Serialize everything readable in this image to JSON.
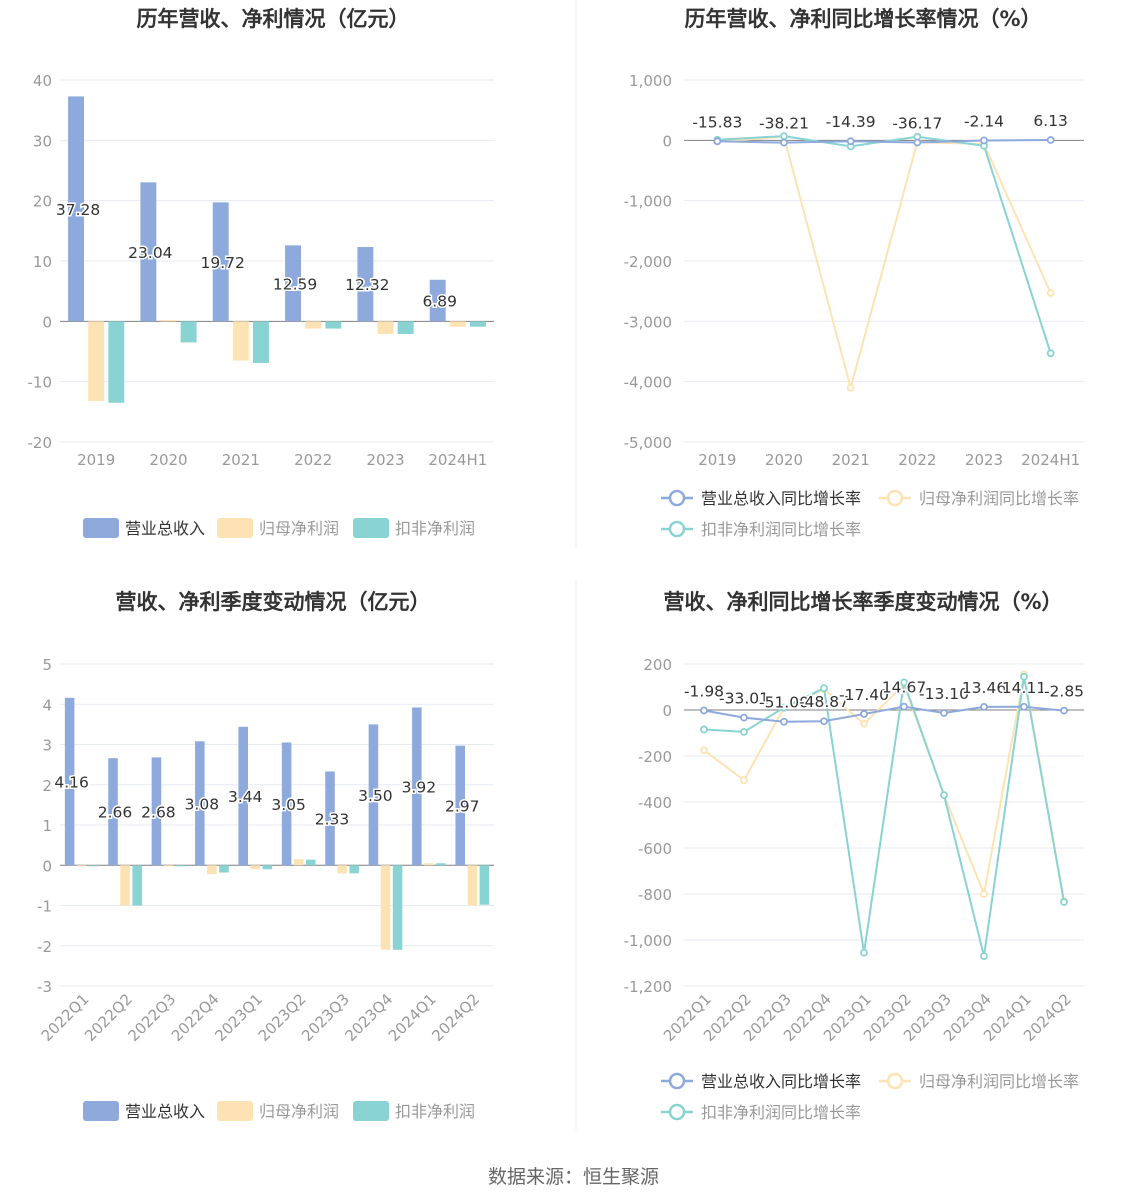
{
  "colors": {
    "revenue": "#8eaadc",
    "netprofit": "#fde3b3",
    "deducted": "#8ad3d3",
    "grid": "#e6eaf2",
    "axis": "#7f7f7f",
    "text": "#333333",
    "tick": "#999999"
  },
  "footer": {
    "source": "数据来源：恒生聚源"
  },
  "legend_labels": {
    "bars": [
      "营业总收入",
      "归母净利润",
      "扣非净利润"
    ],
    "lines": [
      "营业总收入同比增长率",
      "归母净利润同比增长率",
      "扣非净利润同比增长率"
    ]
  },
  "chart_data": [
    {
      "type": "bar",
      "title": "历年营收、净利情况（亿元）",
      "categories": [
        "2019",
        "2020",
        "2021",
        "2022",
        "2023",
        "2024H1"
      ],
      "ylim": [
        -20,
        40
      ],
      "yticks": [
        "40",
        "30",
        "20",
        "10",
        "0",
        "-10",
        "-20"
      ],
      "ytick_values": [
        40,
        30,
        20,
        10,
        0,
        -10,
        -20
      ],
      "series": [
        {
          "name": "营业总收入",
          "values": [
            37.28,
            23.04,
            19.72,
            12.59,
            12.32,
            6.89
          ]
        },
        {
          "name": "归母净利润",
          "values": [
            -13.2,
            0.2,
            -6.5,
            -1.2,
            -2.1,
            -0.9
          ]
        },
        {
          "name": "扣非净利润",
          "values": [
            -13.5,
            -3.5,
            -6.9,
            -1.2,
            -2.1,
            -0.9
          ]
        }
      ],
      "data_labels": [
        "37.28",
        "23.04",
        "19.72",
        "12.59",
        "12.32",
        "6.89"
      ],
      "grid": true,
      "legend": "bottom"
    },
    {
      "type": "line",
      "title": "历年营收、净利同比增长率情况（%）",
      "categories": [
        "2019",
        "2020",
        "2021",
        "2022",
        "2023",
        "2024H1"
      ],
      "ylim": [
        -5000,
        1000
      ],
      "yticks": [
        "1,000",
        "0",
        "-1,000",
        "-2,000",
        "-3,000",
        "-4,000",
        "-5,000"
      ],
      "ytick_values": [
        1000,
        0,
        -1000,
        -2000,
        -3000,
        -4000,
        -5000
      ],
      "series": [
        {
          "name": "营业总收入同比增长率",
          "values": [
            -15.83,
            -38.21,
            -14.39,
            -36.17,
            -2.14,
            6.13
          ]
        },
        {
          "name": "归母净利润同比增长率",
          "values": [
            -20,
            60,
            -4100,
            -30,
            -60,
            -2530
          ]
        },
        {
          "name": "扣非净利润同比增长率",
          "values": [
            10,
            70,
            -100,
            60,
            -90,
            -3530
          ]
        }
      ],
      "data_labels": [
        "-15.83",
        "-38.21",
        "-14.39",
        "-36.17",
        "-2.14",
        "6.13"
      ],
      "grid": true,
      "legend": "bottom"
    },
    {
      "type": "bar",
      "title": "营收、净利季度变动情况（亿元）",
      "categories": [
        "2022Q1",
        "2022Q2",
        "2022Q3",
        "2022Q4",
        "2023Q1",
        "2023Q2",
        "2023Q3",
        "2023Q4",
        "2024Q1",
        "2024Q2"
      ],
      "ylim": [
        -3,
        5
      ],
      "yticks": [
        "5",
        "4",
        "3",
        "2",
        "1",
        "0",
        "-1",
        "-2",
        "-3"
      ],
      "ytick_values": [
        5,
        4,
        3,
        2,
        1,
        0,
        -1,
        -2,
        -3
      ],
      "series": [
        {
          "name": "营业总收入",
          "values": [
            4.16,
            2.66,
            2.68,
            3.08,
            3.44,
            3.05,
            2.33,
            3.5,
            3.92,
            2.97
          ]
        },
        {
          "name": "归母净利润",
          "values": [
            -0.02,
            -1.0,
            -0.02,
            -0.22,
            -0.1,
            0.15,
            -0.2,
            -2.1,
            0.05,
            -1.0
          ]
        },
        {
          "name": "扣非净利润",
          "values": [
            -0.02,
            -1.0,
            -0.02,
            -0.18,
            -0.1,
            0.14,
            -0.2,
            -2.1,
            0.05,
            -0.98
          ]
        }
      ],
      "data_labels": [
        "4.16",
        "2.66",
        "2.68",
        "3.08",
        "3.44",
        "3.05",
        "2.33",
        "3.50",
        "3.92",
        "2.97"
      ],
      "grid": true,
      "legend": "bottom"
    },
    {
      "type": "line",
      "title": "营收、净利同比增长率季度变动情况（%）",
      "categories": [
        "2022Q1",
        "2022Q2",
        "2022Q3",
        "2022Q4",
        "2023Q1",
        "2023Q2",
        "2023Q3",
        "2023Q4",
        "2024Q1",
        "2024Q2"
      ],
      "ylim": [
        -1200,
        200
      ],
      "yticks": [
        "200",
        "0",
        "-200",
        "-400",
        "-600",
        "-800",
        "-1,000",
        "-1,200"
      ],
      "ytick_values": [
        200,
        0,
        -200,
        -400,
        -600,
        -800,
        -1000,
        -1200
      ],
      "series": [
        {
          "name": "营业总收入同比增长率",
          "values": [
            -1.98,
            -33.01,
            -51.0,
            -48.87,
            -17.4,
            14.67,
            -13.1,
            13.46,
            14.11,
            -2.85
          ]
        },
        {
          "name": "归母净利润同比增长率",
          "values": [
            -175,
            -305,
            10,
            90,
            -60,
            110,
            -370,
            -800,
            155,
            -830
          ]
        },
        {
          "name": "扣非净利润同比增长率",
          "values": [
            -85,
            -95,
            10,
            95,
            -1055,
            120,
            -370,
            -1070,
            145,
            -835
          ]
        }
      ],
      "data_labels": [
        "-1.98",
        "-33.01",
        "-51.00",
        "-48.87",
        "-17.40",
        "14.67",
        "-13.10",
        "13.46",
        "14.11",
        "-2.85"
      ],
      "grid": true,
      "legend": "bottom"
    }
  ]
}
